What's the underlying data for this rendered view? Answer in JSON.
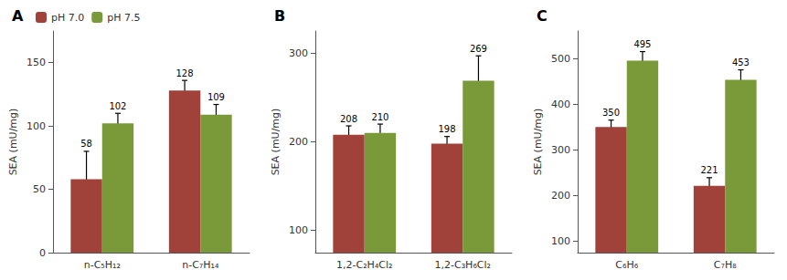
{
  "chart_data": [
    {
      "type": "bar",
      "title": "A",
      "categories": [
        "n-C₅H₁₂",
        "n-C₇H₁₄"
      ],
      "series": [
        {
          "name": "pH 7.0",
          "color": "#a0413a",
          "values": [
            58,
            128
          ],
          "errors": [
            22,
            8
          ]
        },
        {
          "name": "pH 7.5",
          "color": "#7a9a3a",
          "values": [
            102,
            109
          ],
          "errors": [
            8,
            8
          ]
        }
      ],
      "ylabel": "SEA (mU/mg)",
      "ylim": [
        0,
        175
      ],
      "yticks": [
        0,
        50,
        100,
        150
      ],
      "legend": "upper left",
      "data_labels": true,
      "grid": false
    },
    {
      "type": "bar",
      "title": "B",
      "categories": [
        "1,2-C₂H₄Cl₂",
        "1,2-C₃H₆Cl₂"
      ],
      "series": [
        {
          "name": "pH 7.0",
          "color": "#a0413a",
          "values": [
            208,
            198
          ],
          "errors": [
            10,
            8
          ]
        },
        {
          "name": "pH 7.5",
          "color": "#7a9a3a",
          "values": [
            210,
            269
          ],
          "errors": [
            10,
            28
          ]
        }
      ],
      "ylabel": "SEA (mU/mg)",
      "ylim": [
        75,
        325
      ],
      "yticks": [
        100,
        200,
        300
      ],
      "data_labels": true,
      "grid": false
    },
    {
      "type": "bar",
      "title": "C",
      "categories": [
        "C₆H₆",
        "C₇H₈"
      ],
      "series": [
        {
          "name": "pH 7.0",
          "color": "#a0413a",
          "values": [
            350,
            221
          ],
          "errors": [
            15,
            18
          ]
        },
        {
          "name": "pH 7.5",
          "color": "#7a9a3a",
          "values": [
            495,
            453
          ],
          "errors": [
            20,
            22
          ]
        }
      ],
      "ylabel": "SEA (mU/mg)",
      "ylim": [
        75,
        560
      ],
      "yticks": [
        100,
        200,
        300,
        400,
        500
      ],
      "data_labels": true,
      "grid": false
    }
  ]
}
